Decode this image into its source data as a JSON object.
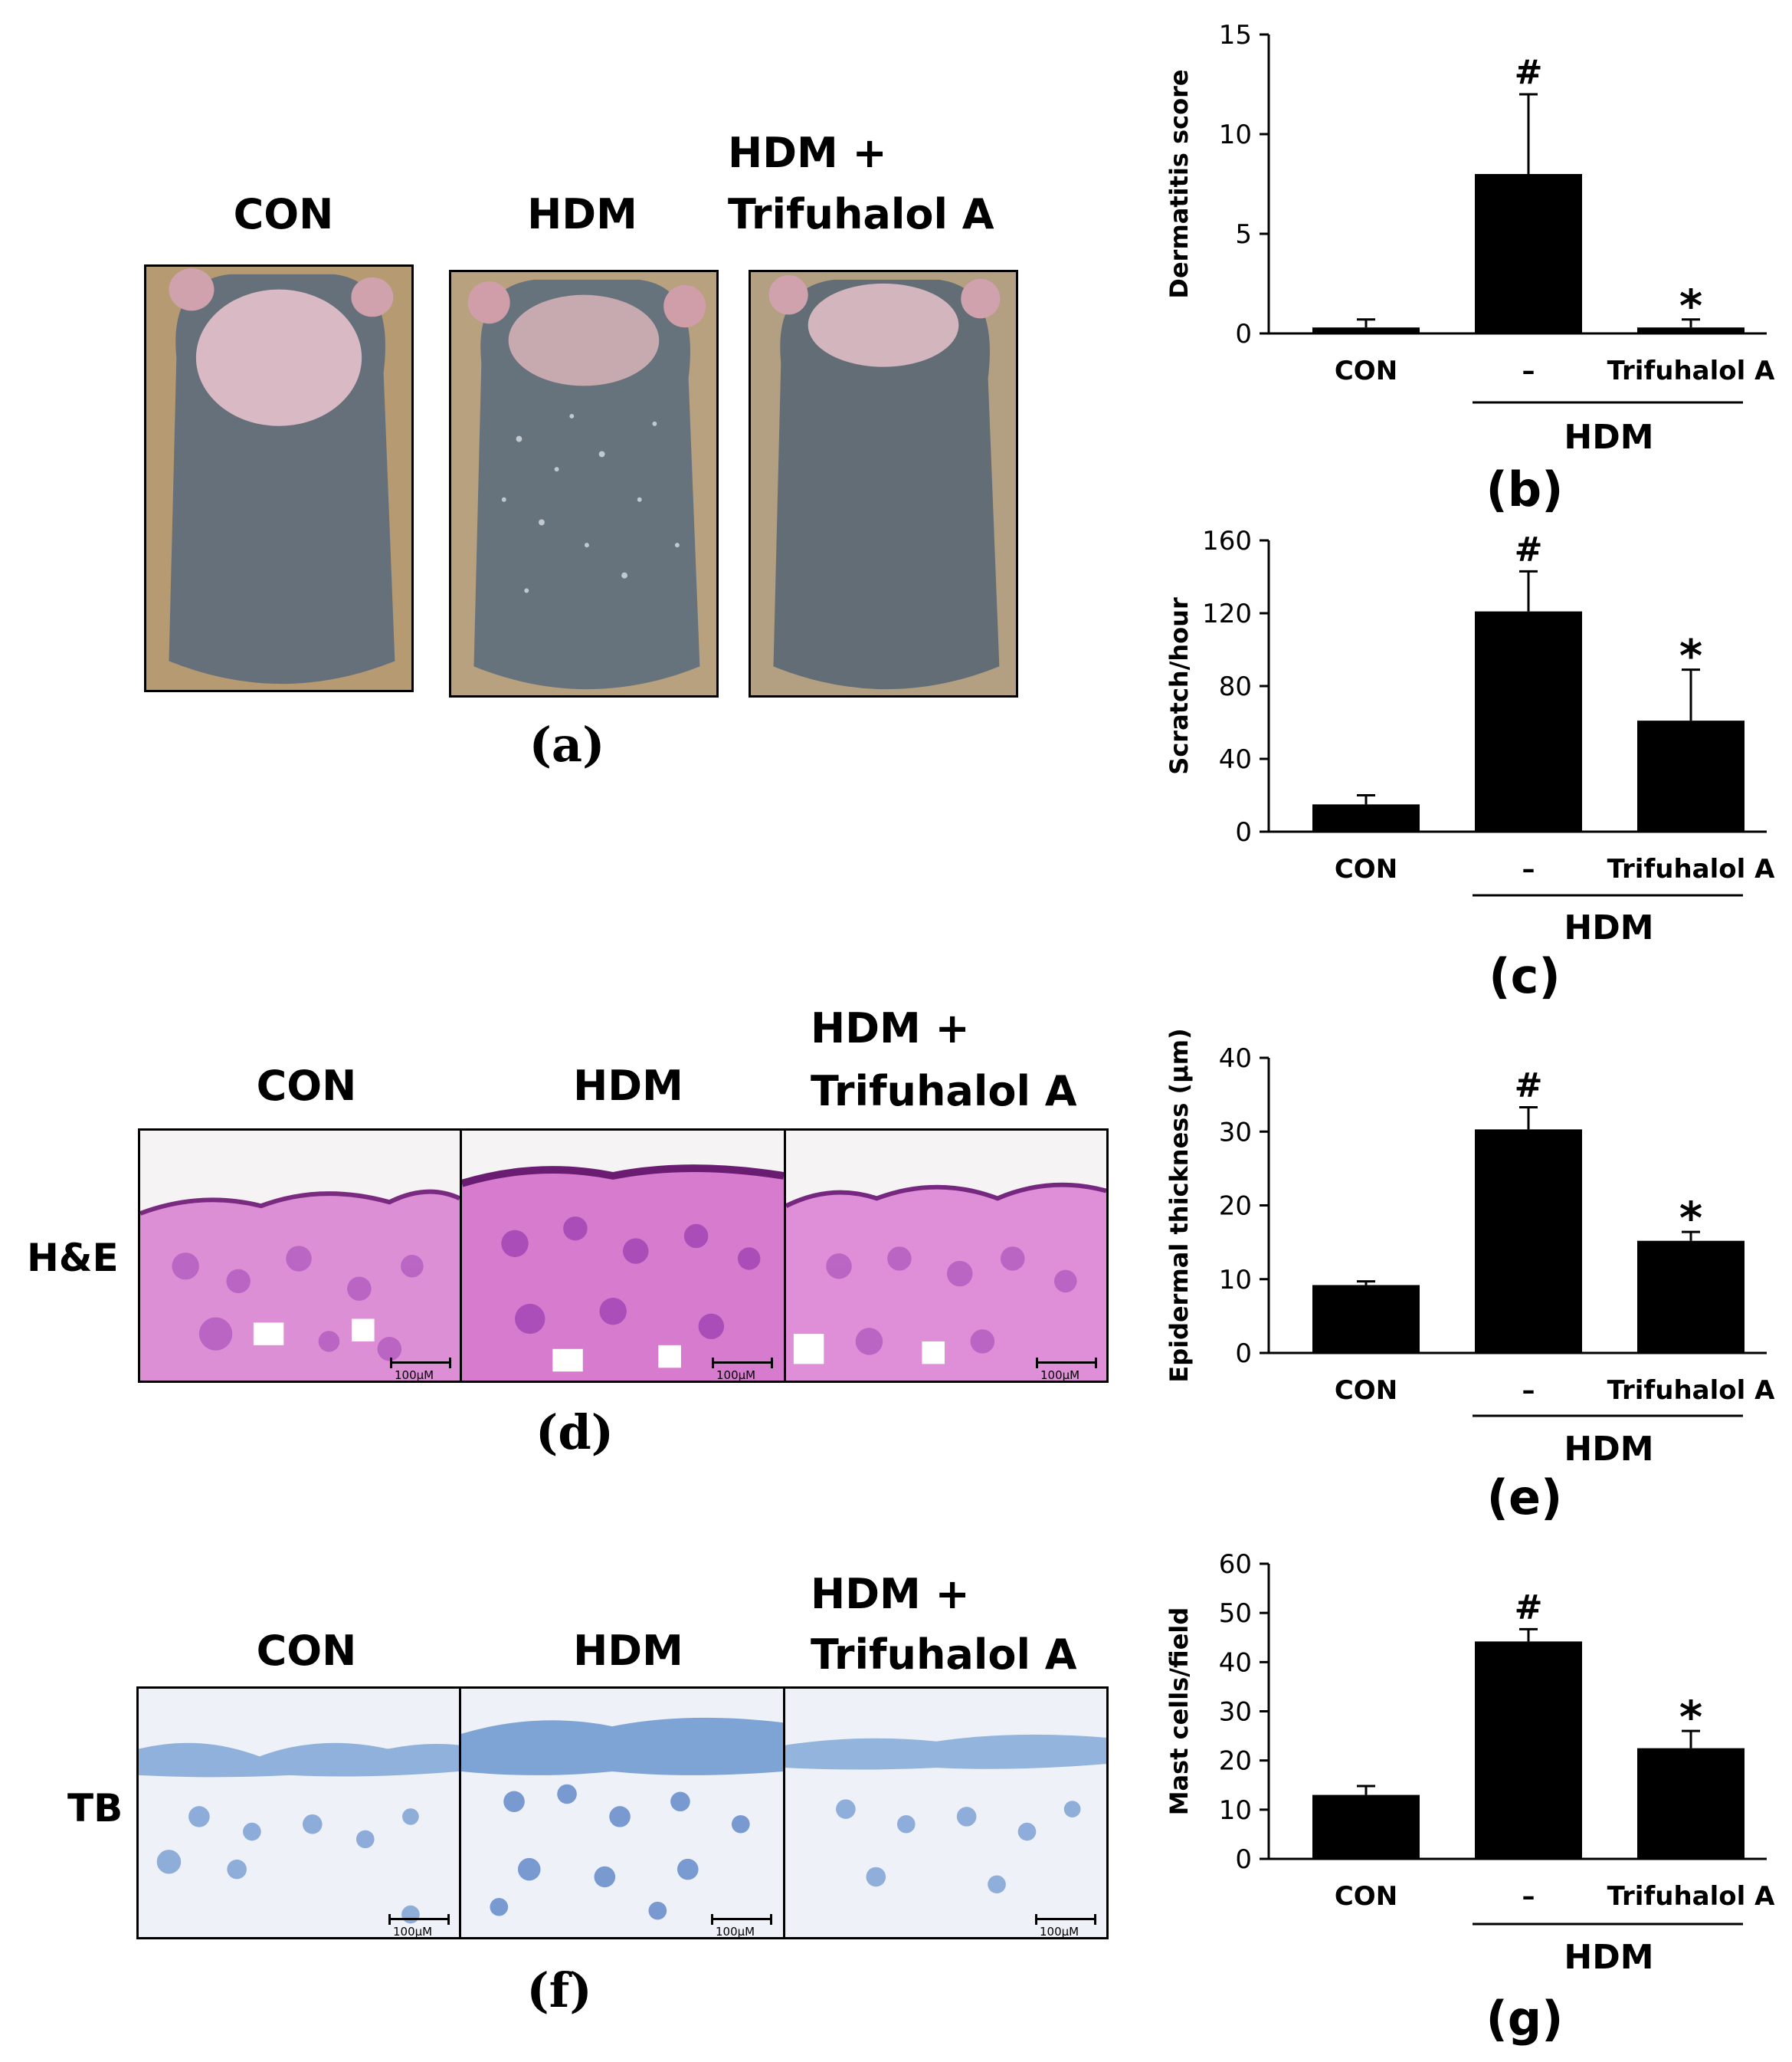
{
  "panel_a": {
    "label": "(a)",
    "headers": [
      "CON",
      "HDM",
      "HDM +",
      "Trifuhalol A"
    ]
  },
  "panel_d": {
    "label": "(d)",
    "row_label": "H&E",
    "headers": [
      "CON",
      "HDM",
      "HDM +",
      "Trifuhalol A"
    ],
    "scale_text": "100μM"
  },
  "panel_f": {
    "label": "(f)",
    "row_label": "TB",
    "headers": [
      "CON",
      "HDM",
      "HDM +",
      "Trifuhalol A"
    ],
    "scale_text": "100μM"
  },
  "chart_data": [
    {
      "id": "b",
      "panel_label": "(b)",
      "type": "bar",
      "categories": [
        "CON",
        "–",
        "Trifuhalol A"
      ],
      "group_label": "HDM",
      "ylabel": "Dermatitis score",
      "ylim": [
        0,
        15
      ],
      "yticks": [
        0,
        5,
        10,
        15
      ],
      "values": [
        0.3,
        8.0,
        0.3
      ],
      "errors": [
        0.4,
        4.0,
        0.4
      ],
      "significance": [
        "",
        "#",
        "*"
      ],
      "bar_color": "#000000"
    },
    {
      "id": "c",
      "panel_label": "(c)",
      "type": "bar",
      "categories": [
        "CON",
        "–",
        "Trifuhalol A"
      ],
      "group_label": "HDM",
      "ylabel": "Scratch/hour",
      "ylim": [
        0,
        160
      ],
      "yticks": [
        0,
        40,
        80,
        120,
        160
      ],
      "values": [
        15,
        121,
        61
      ],
      "errors": [
        5,
        22,
        28
      ],
      "significance": [
        "",
        "#",
        "*"
      ],
      "bar_color": "#000000"
    },
    {
      "id": "e",
      "panel_label": "(e)",
      "type": "bar",
      "categories": [
        "CON",
        "–",
        "Trifuhalol A"
      ],
      "group_label": "HDM",
      "ylabel": "Epidermal thickness (μm)",
      "ylim": [
        0,
        40
      ],
      "yticks": [
        0,
        10,
        20,
        30,
        40
      ],
      "values": [
        9.2,
        30.3,
        15.2
      ],
      "errors": [
        0.5,
        3.0,
        1.2
      ],
      "significance": [
        "",
        "#",
        "*"
      ],
      "bar_color": "#000000"
    },
    {
      "id": "g",
      "panel_label": "(g)",
      "type": "bar",
      "categories": [
        "CON",
        "–",
        "Trifuhalol A"
      ],
      "group_label": "HDM",
      "ylabel": "Mast cells/field",
      "ylim": [
        0,
        60
      ],
      "yticks": [
        0,
        10,
        20,
        30,
        40,
        50,
        60
      ],
      "values": [
        13,
        44.2,
        22.5
      ],
      "errors": [
        1.8,
        2.5,
        3.5
      ],
      "significance": [
        "",
        "#",
        "*"
      ],
      "bar_color": "#000000"
    }
  ]
}
